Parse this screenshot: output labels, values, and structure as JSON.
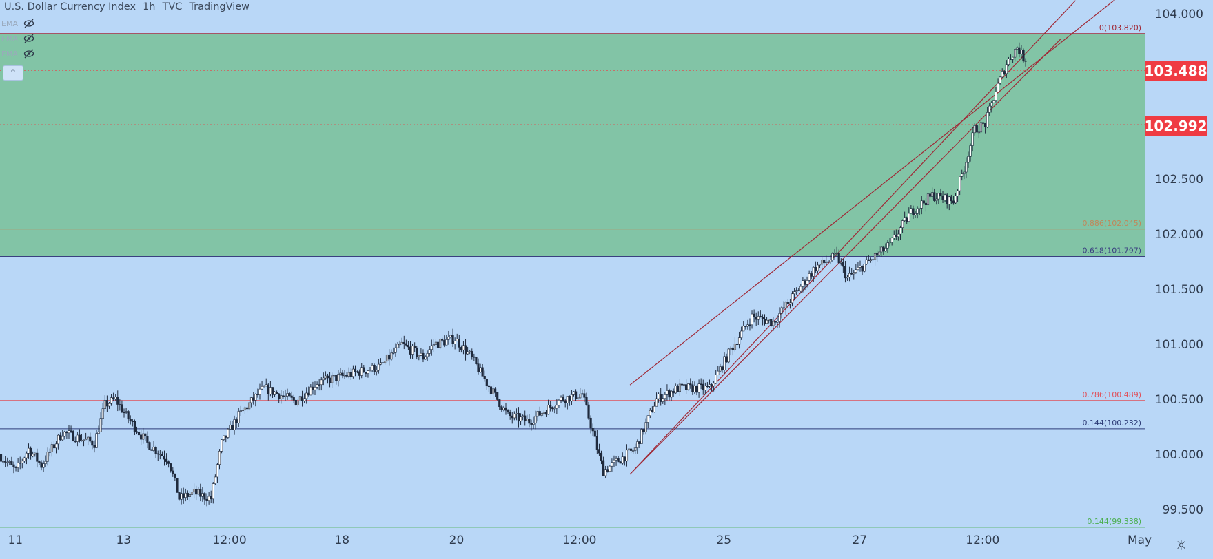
{
  "header": {
    "symbol": "U.S. Dollar Currency Index",
    "interval": "1h",
    "source": "TVC",
    "platform": "TradingView"
  },
  "indicators": [
    {
      "label": "EMA",
      "icon": "eye-hidden-icon"
    },
    {
      "label": "EMA",
      "icon": "eye-hidden-icon"
    },
    {
      "label": "EMA",
      "icon": "eye-hidden-icon"
    }
  ],
  "collapse_icon": "chevron-up-icon",
  "price_labels": {
    "upper": "103.488",
    "lower": "102.992",
    "color": "#ef3b43"
  },
  "settings_icon": "gear-icon",
  "colors": {
    "background": "#b9d7f7",
    "fib_zone": "#82c4a6",
    "candle_up": "#ffffff",
    "candle_down": "#1f2a3d",
    "channel": "#a02836"
  },
  "chart_data": {
    "type": "candlestick",
    "instrument": "U.S. Dollar Currency Index",
    "timeframe": "1h",
    "ylim": [
      99.3,
      104.1
    ],
    "y_ticks": [
      "104.000",
      "103.500",
      "103.000",
      "102.500",
      "102.000",
      "101.500",
      "101.000",
      "100.500",
      "100.000",
      "99.500"
    ],
    "x_ticks": [
      "11",
      "13",
      "12:00",
      "18",
      "20",
      "12:00",
      "25",
      "27",
      "12:00",
      "May"
    ],
    "x_tick_index": [
      4,
      55,
      105,
      158,
      212,
      270,
      338,
      402,
      460,
      534
    ],
    "num_bars": 540,
    "fib_levels": [
      {
        "label": "0(103.820)",
        "price": 103.82,
        "color": "#a02836"
      },
      {
        "label": "0.886(102.045)",
        "price": 102.045,
        "color": "#c0875a"
      },
      {
        "label": "0.618(101.797)",
        "price": 101.797,
        "color": "#3a3f80"
      },
      {
        "label": "0.786(100.489)",
        "price": 100.489,
        "color": "#e0505a"
      },
      {
        "label": "0.144(100.232)",
        "price": 100.232,
        "color": "#2e3d78"
      },
      {
        "label": "0.144(99.338)",
        "price": 99.338,
        "color": "#4caf50"
      }
    ],
    "shaded_zone": [
      101.797,
      103.82
    ],
    "horizontal_lines": [
      103.488,
      102.992
    ],
    "channel_lines": [
      {
        "x": [
          297,
          507
        ],
        "y": [
          99.82,
          104.12
        ]
      },
      {
        "x": [
          297,
          529
        ],
        "y": [
          100.63,
          104.18
        ]
      },
      {
        "x": [
          297,
          500
        ],
        "y": [
          99.82,
          103.77
        ]
      }
    ],
    "price_path": {
      "x": [
        0,
        8,
        14,
        20,
        30,
        45,
        50,
        55,
        60,
        70,
        80,
        85,
        92,
        100,
        105,
        113,
        120,
        125,
        140,
        150,
        160,
        170,
        180,
        190,
        200,
        205,
        215,
        222,
        230,
        240,
        250,
        265,
        275,
        285,
        300,
        310,
        320,
        335,
        345,
        355,
        365,
        375,
        385,
        395,
        400,
        410,
        420,
        430,
        440,
        450,
        455,
        460,
        465,
        470,
        475,
        480,
        483
      ],
      "y": [
        100.0,
        99.85,
        100.05,
        99.9,
        100.2,
        100.1,
        100.45,
        100.5,
        100.35,
        100.1,
        99.95,
        99.6,
        99.65,
        99.6,
        100.1,
        100.35,
        100.5,
        100.6,
        100.48,
        100.65,
        100.7,
        100.75,
        100.8,
        101.0,
        100.88,
        101.0,
        101.05,
        100.9,
        100.65,
        100.35,
        100.3,
        100.5,
        100.55,
        99.85,
        100.05,
        100.5,
        100.6,
        100.6,
        100.95,
        101.25,
        101.2,
        101.45,
        101.7,
        101.8,
        101.6,
        101.75,
        101.9,
        102.2,
        102.35,
        102.3,
        102.6,
        102.95,
        103.0,
        103.3,
        103.55,
        103.7,
        103.6
      ]
    }
  }
}
